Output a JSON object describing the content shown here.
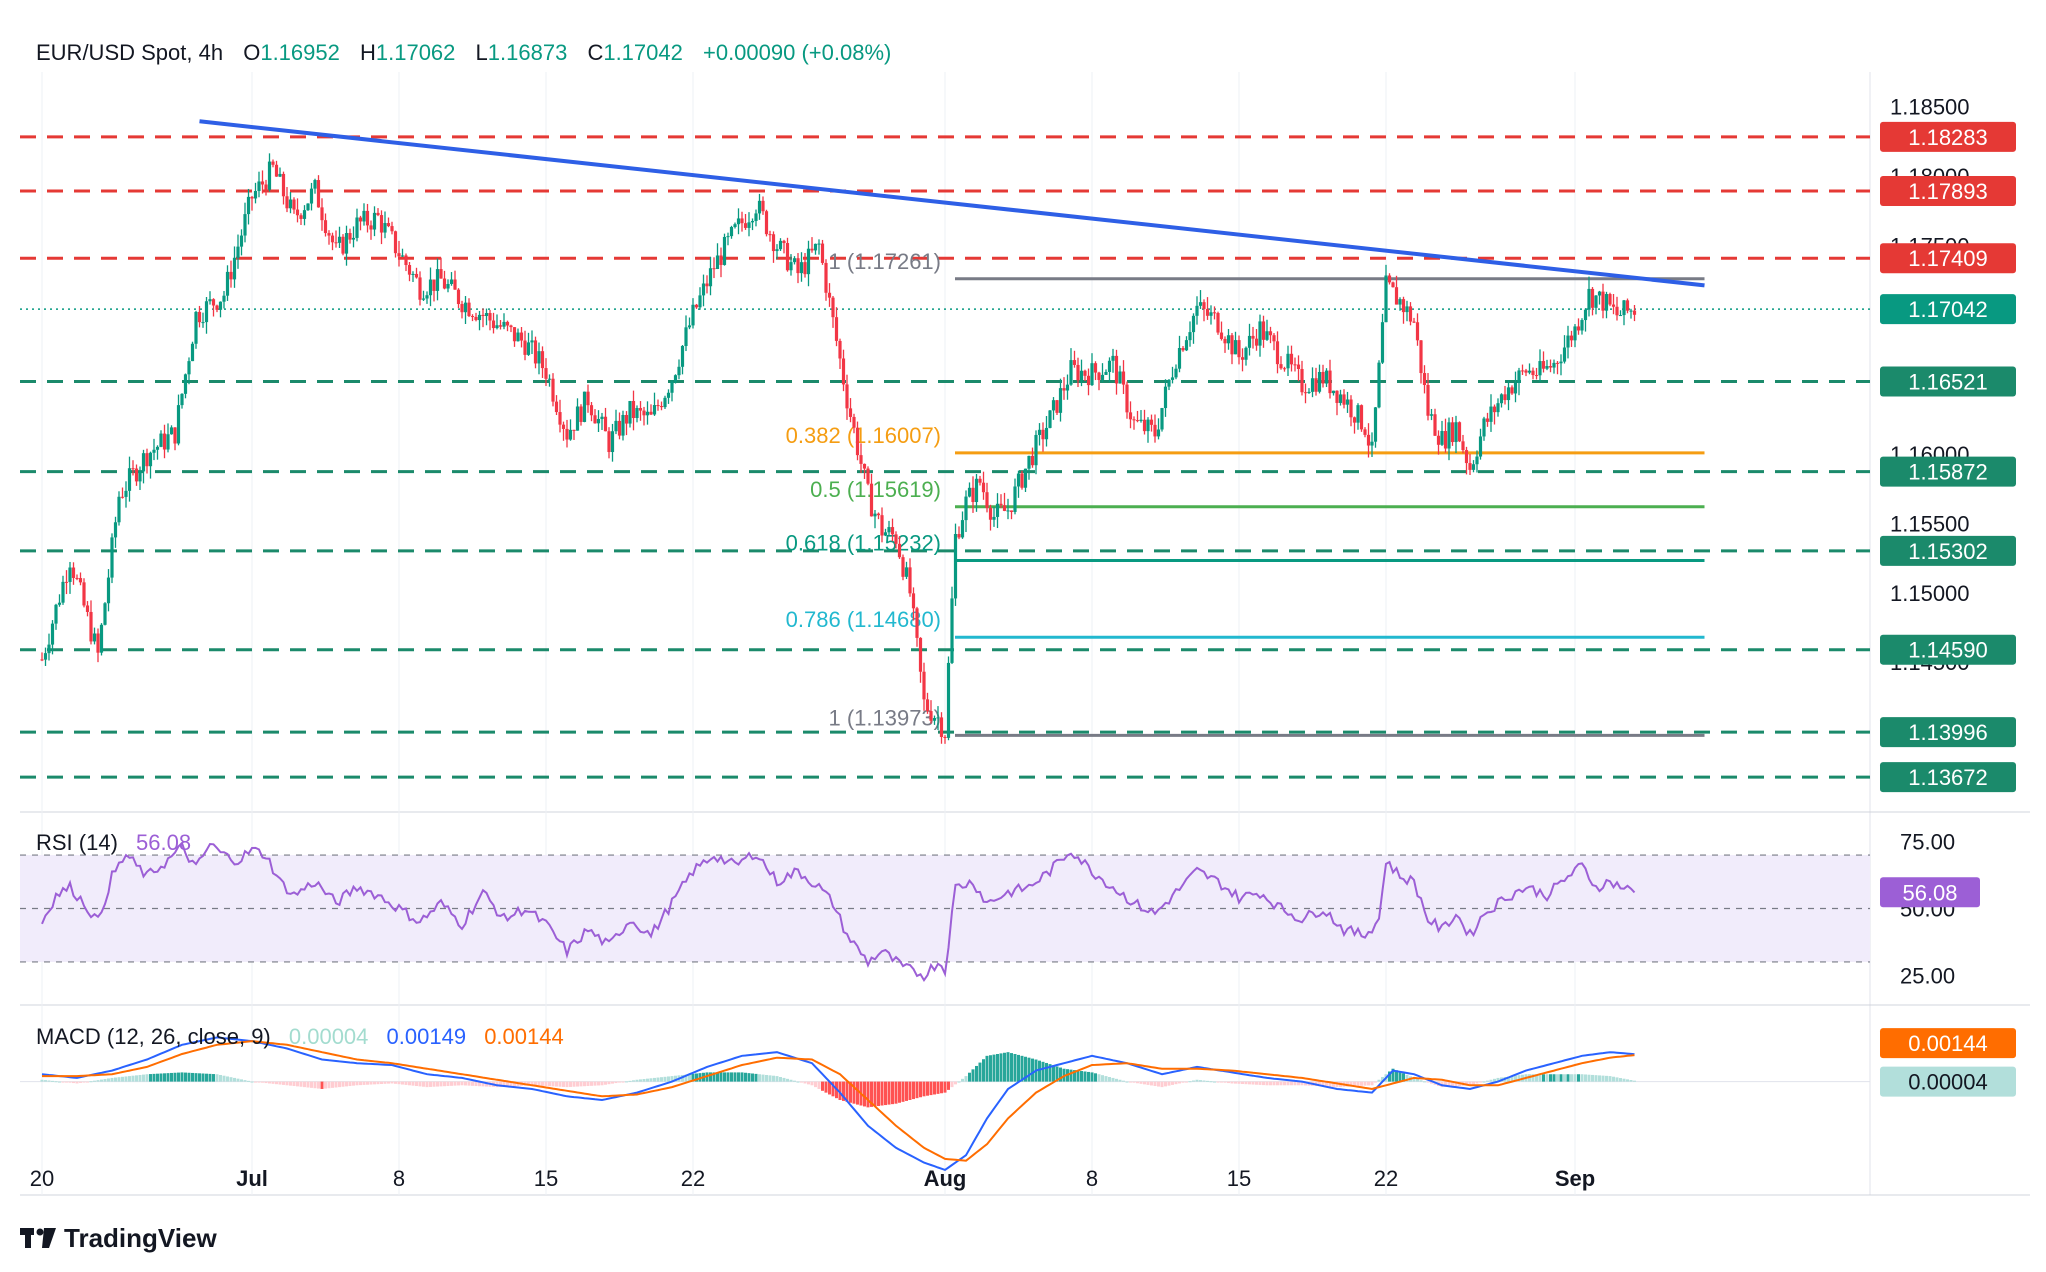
{
  "header": {
    "symbol": "EUR/USD Spot, 4h",
    "o_label": "O",
    "o_value": "1.16952",
    "h_label": "H",
    "h_value": "1.17062",
    "l_label": "L",
    "l_value": "1.16873",
    "c_label": "C",
    "c_value": "1.17042",
    "change": "+0.00090 (+0.08%)"
  },
  "colors": {
    "red_level": "#e53935",
    "green_level": "#1b8a6b",
    "trend": "#2e5fe6",
    "fib_gray": "#787b86",
    "fib_orange": "#f59d12",
    "fib_lightgreen": "#4caf50",
    "fib_teal": "#089981",
    "fib_cyan": "#22b8cf",
    "up": "#089981",
    "down": "#f23645",
    "rsi": "#9c5fd6",
    "macd": "#2962ff",
    "signal": "#ff6d00"
  },
  "chart_data": [
    {
      "type": "candlestick",
      "title": "EUR/USD Spot, 4h",
      "y_axis_ticks": [
        "1.18500",
        "1.18000",
        "1.17500",
        "1.16000",
        "1.15500",
        "1.15000",
        "1.14500"
      ],
      "ylim": [
        1.1345,
        1.1875
      ],
      "x_ticks": [
        {
          "label": "20",
          "bold": false,
          "idx": 0
        },
        {
          "label": "Jul",
          "bold": true,
          "idx": 60
        },
        {
          "label": "8",
          "bold": false,
          "idx": 102
        },
        {
          "label": "15",
          "bold": false,
          "idx": 144
        },
        {
          "label": "22",
          "bold": false,
          "idx": 186
        },
        {
          "label": "Aug",
          "bold": true,
          "idx": 258
        },
        {
          "label": "8",
          "bold": false,
          "idx": 300
        },
        {
          "label": "15",
          "bold": false,
          "idx": 342
        },
        {
          "label": "22",
          "bold": false,
          "idx": 384
        },
        {
          "label": "Sep",
          "bold": true,
          "idx": 438
        }
      ],
      "resistance_levels": [
        {
          "value": "1.18283",
          "price": 1.18283,
          "color": "#e53935"
        },
        {
          "value": "1.17893",
          "price": 1.17893,
          "color": "#e53935"
        },
        {
          "value": "1.17409",
          "price": 1.17409,
          "color": "#e53935"
        }
      ],
      "support_levels": [
        {
          "value": "1.16521",
          "price": 1.16521,
          "color": "#1b8a6b"
        },
        {
          "value": "1.15872",
          "price": 1.15872,
          "color": "#1b8a6b"
        },
        {
          "value": "1.15302",
          "price": 1.15302,
          "color": "#1b8a6b"
        },
        {
          "value": "1.14590",
          "price": 1.1459,
          "color": "#1b8a6b"
        },
        {
          "value": "1.13996",
          "price": 1.13996,
          "color": "#1b8a6b"
        },
        {
          "value": "1.13672",
          "price": 1.13672,
          "color": "#1b8a6b"
        }
      ],
      "last_price": {
        "value": "1.17042",
        "price": 1.17042
      },
      "trendline": {
        "from": {
          "idx": 45,
          "price": 1.18395
        },
        "to": {
          "idx": 455,
          "price": 1.17235
        }
      },
      "fibonacci": [
        {
          "label": "1 (1.17261)",
          "price": 1.17261,
          "color": "#787b86"
        },
        {
          "label": "0.382 (1.16007)",
          "price": 1.16007,
          "color": "#f59d12"
        },
        {
          "label": "0.5 (1.15619)",
          "price": 1.15619,
          "color": "#4caf50"
        },
        {
          "label": "0.618 (1.15232)",
          "price": 1.15232,
          "color": "#089981"
        },
        {
          "label": "0.786 (1.14680)",
          "price": 1.1468,
          "color": "#22b8cf"
        },
        {
          "label": "1 (1.13973)",
          "price": 1.13973,
          "color": "#787b86"
        }
      ],
      "fib_start_idx": 258,
      "fib_end_idx": 455,
      "price_path": [
        [
          0,
          1.1452
        ],
        [
          8,
          1.1525
        ],
        [
          16,
          1.1455
        ],
        [
          22,
          1.157
        ],
        [
          30,
          1.16
        ],
        [
          38,
          1.1615
        ],
        [
          44,
          1.17
        ],
        [
          52,
          1.1715
        ],
        [
          60,
          1.1785
        ],
        [
          66,
          1.1805
        ],
        [
          72,
          1.177
        ],
        [
          78,
          1.179
        ],
        [
          84,
          1.1745
        ],
        [
          90,
          1.1765
        ],
        [
          96,
          1.177
        ],
        [
          102,
          1.1745
        ],
        [
          108,
          1.172
        ],
        [
          114,
          1.1725
        ],
        [
          120,
          1.171
        ],
        [
          126,
          1.17
        ],
        [
          132,
          1.169
        ],
        [
          138,
          1.168
        ],
        [
          144,
          1.166
        ],
        [
          150,
          1.1615
        ],
        [
          156,
          1.164
        ],
        [
          162,
          1.1608
        ],
        [
          168,
          1.163
        ],
        [
          174,
          1.1625
        ],
        [
          180,
          1.1655
        ],
        [
          186,
          1.17
        ],
        [
          192,
          1.1735
        ],
        [
          198,
          1.176
        ],
        [
          204,
          1.178
        ],
        [
          210,
          1.175
        ],
        [
          216,
          1.173
        ],
        [
          222,
          1.175
        ],
        [
          226,
          1.1695
        ],
        [
          230,
          1.164
        ],
        [
          236,
          1.157
        ],
        [
          240,
          1.1545
        ],
        [
          244,
          1.154
        ],
        [
          248,
          1.15
        ],
        [
          252,
          1.142
        ],
        [
          256,
          1.141
        ],
        [
          258,
          1.14
        ],
        [
          261,
          1.154
        ],
        [
          264,
          1.1565
        ],
        [
          268,
          1.158
        ],
        [
          272,
          1.1555
        ],
        [
          276,
          1.156
        ],
        [
          282,
          1.1595
        ],
        [
          288,
          1.1625
        ],
        [
          294,
          1.166
        ],
        [
          300,
          1.1658
        ],
        [
          306,
          1.1665
        ],
        [
          312,
          1.1622
        ],
        [
          318,
          1.1615
        ],
        [
          324,
          1.167
        ],
        [
          330,
          1.1705
        ],
        [
          336,
          1.1695
        ],
        [
          342,
          1.167
        ],
        [
          348,
          1.169
        ],
        [
          354,
          1.167
        ],
        [
          360,
          1.165
        ],
        [
          366,
          1.1655
        ],
        [
          372,
          1.164
        ],
        [
          378,
          1.162
        ],
        [
          380,
          1.16
        ],
        [
          384,
          1.172
        ],
        [
          388,
          1.171
        ],
        [
          392,
          1.1695
        ],
        [
          396,
          1.163
        ],
        [
          400,
          1.161
        ],
        [
          404,
          1.162
        ],
        [
          408,
          1.159
        ],
        [
          412,
          1.162
        ],
        [
          418,
          1.1645
        ],
        [
          424,
          1.166
        ],
        [
          428,
          1.1658
        ],
        [
          432,
          1.1665
        ],
        [
          438,
          1.169
        ],
        [
          442,
          1.1715
        ],
        [
          446,
          1.171
        ],
        [
          450,
          1.17
        ],
        [
          455,
          1.17042
        ]
      ]
    },
    {
      "type": "line",
      "title": "RSI (14)",
      "value": "56.08",
      "ticks": [
        "75.00",
        "50.00",
        "25.00"
      ],
      "ylim": [
        15,
        85
      ],
      "band": [
        30,
        70
      ],
      "series": [
        [
          0,
          45
        ],
        [
          4,
          55
        ],
        [
          8,
          58
        ],
        [
          12,
          52
        ],
        [
          16,
          45
        ],
        [
          20,
          62
        ],
        [
          24,
          70
        ],
        [
          30,
          62
        ],
        [
          36,
          68
        ],
        [
          40,
          73
        ],
        [
          44,
          65
        ],
        [
          48,
          74
        ],
        [
          52,
          70
        ],
        [
          56,
          68
        ],
        [
          60,
          72
        ],
        [
          64,
          70
        ],
        [
          68,
          60
        ],
        [
          72,
          55
        ],
        [
          78,
          60
        ],
        [
          84,
          52
        ],
        [
          90,
          58
        ],
        [
          96,
          55
        ],
        [
          102,
          50
        ],
        [
          108,
          45
        ],
        [
          114,
          52
        ],
        [
          120,
          44
        ],
        [
          126,
          56
        ],
        [
          132,
          46
        ],
        [
          138,
          50
        ],
        [
          144,
          44
        ],
        [
          150,
          34
        ],
        [
          156,
          42
        ],
        [
          162,
          36
        ],
        [
          168,
          46
        ],
        [
          174,
          40
        ],
        [
          180,
          52
        ],
        [
          186,
          64
        ],
        [
          192,
          70
        ],
        [
          198,
          66
        ],
        [
          204,
          71
        ],
        [
          210,
          60
        ],
        [
          216,
          64
        ],
        [
          222,
          58
        ],
        [
          226,
          52
        ],
        [
          230,
          40
        ],
        [
          236,
          30
        ],
        [
          240,
          34
        ],
        [
          246,
          28
        ],
        [
          252,
          25
        ],
        [
          256,
          30
        ],
        [
          258,
          27
        ],
        [
          261,
          58
        ],
        [
          266,
          60
        ],
        [
          270,
          52
        ],
        [
          276,
          56
        ],
        [
          282,
          58
        ],
        [
          288,
          64
        ],
        [
          294,
          72
        ],
        [
          300,
          64
        ],
        [
          306,
          58
        ],
        [
          312,
          52
        ],
        [
          318,
          48
        ],
        [
          324,
          56
        ],
        [
          330,
          64
        ],
        [
          336,
          60
        ],
        [
          342,
          54
        ],
        [
          348,
          56
        ],
        [
          354,
          50
        ],
        [
          360,
          46
        ],
        [
          366,
          50
        ],
        [
          372,
          42
        ],
        [
          378,
          40
        ],
        [
          382,
          46
        ],
        [
          384,
          68
        ],
        [
          388,
          62
        ],
        [
          392,
          60
        ],
        [
          396,
          46
        ],
        [
          400,
          42
        ],
        [
          404,
          48
        ],
        [
          408,
          40
        ],
        [
          412,
          48
        ],
        [
          418,
          54
        ],
        [
          424,
          58
        ],
        [
          430,
          55
        ],
        [
          436,
          62
        ],
        [
          440,
          66
        ],
        [
          444,
          58
        ],
        [
          448,
          60
        ],
        [
          455,
          56.08
        ]
      ]
    },
    {
      "type": "macd",
      "title": "MACD (12, 26, close, 9)",
      "histogram_value": "0.00004",
      "macd_value": "0.00149",
      "signal_value": "0.00144",
      "ylim": [
        -0.006,
        0.004
      ],
      "macd": [
        [
          0,
          0.0004
        ],
        [
          10,
          0.0002
        ],
        [
          20,
          0.0006
        ],
        [
          30,
          0.0012
        ],
        [
          40,
          0.002
        ],
        [
          50,
          0.0024
        ],
        [
          60,
          0.0022
        ],
        [
          70,
          0.0018
        ],
        [
          80,
          0.0012
        ],
        [
          90,
          0.001
        ],
        [
          100,
          0.0009
        ],
        [
          110,
          0.0004
        ],
        [
          120,
          0.0002
        ],
        [
          130,
          -0.0002
        ],
        [
          140,
          -0.0004
        ],
        [
          150,
          -0.0008
        ],
        [
          160,
          -0.001
        ],
        [
          170,
          -0.0006
        ],
        [
          180,
          0.0
        ],
        [
          190,
          0.0008
        ],
        [
          200,
          0.0014
        ],
        [
          210,
          0.0016
        ],
        [
          220,
          0.001
        ],
        [
          228,
          -0.0006
        ],
        [
          236,
          -0.0024
        ],
        [
          244,
          -0.0036
        ],
        [
          252,
          -0.0044
        ],
        [
          258,
          -0.0048
        ],
        [
          264,
          -0.004
        ],
        [
          270,
          -0.002
        ],
        [
          276,
          -0.0004
        ],
        [
          284,
          0.0006
        ],
        [
          292,
          0.001
        ],
        [
          300,
          0.0014
        ],
        [
          310,
          0.001
        ],
        [
          320,
          0.0004
        ],
        [
          330,
          0.0008
        ],
        [
          340,
          0.0005
        ],
        [
          350,
          0.0002
        ],
        [
          360,
          0.0
        ],
        [
          370,
          -0.0004
        ],
        [
          380,
          -0.0006
        ],
        [
          386,
          0.0006
        ],
        [
          392,
          0.0004
        ],
        [
          400,
          -0.0002
        ],
        [
          408,
          -0.0004
        ],
        [
          416,
          0.0
        ],
        [
          424,
          0.0006
        ],
        [
          432,
          0.001
        ],
        [
          440,
          0.0014
        ],
        [
          448,
          0.0016
        ],
        [
          455,
          0.00149
        ]
      ],
      "signal": [
        [
          0,
          0.0003
        ],
        [
          10,
          0.0003
        ],
        [
          20,
          0.0004
        ],
        [
          30,
          0.0008
        ],
        [
          40,
          0.0015
        ],
        [
          50,
          0.002
        ],
        [
          60,
          0.0022
        ],
        [
          70,
          0.002
        ],
        [
          80,
          0.0016
        ],
        [
          90,
          0.0012
        ],
        [
          100,
          0.001
        ],
        [
          110,
          0.0007
        ],
        [
          120,
          0.0004
        ],
        [
          130,
          0.0001
        ],
        [
          140,
          -0.0002
        ],
        [
          150,
          -0.0005
        ],
        [
          160,
          -0.0008
        ],
        [
          170,
          -0.0007
        ],
        [
          180,
          -0.0003
        ],
        [
          190,
          0.0003
        ],
        [
          200,
          0.0009
        ],
        [
          210,
          0.0013
        ],
        [
          220,
          0.0012
        ],
        [
          228,
          0.0004
        ],
        [
          236,
          -0.001
        ],
        [
          244,
          -0.0024
        ],
        [
          252,
          -0.0036
        ],
        [
          258,
          -0.0042
        ],
        [
          264,
          -0.0043
        ],
        [
          270,
          -0.0034
        ],
        [
          276,
          -0.002
        ],
        [
          284,
          -0.0006
        ],
        [
          292,
          0.0003
        ],
        [
          300,
          0.0009
        ],
        [
          310,
          0.001
        ],
        [
          320,
          0.0007
        ],
        [
          330,
          0.0007
        ],
        [
          340,
          0.0006
        ],
        [
          350,
          0.0004
        ],
        [
          360,
          0.0002
        ],
        [
          370,
          -0.0001
        ],
        [
          380,
          -0.0004
        ],
        [
          386,
          -0.0001
        ],
        [
          392,
          0.0002
        ],
        [
          400,
          0.0001
        ],
        [
          408,
          -0.0002
        ],
        [
          416,
          -0.0002
        ],
        [
          424,
          0.0002
        ],
        [
          432,
          0.0006
        ],
        [
          440,
          0.001
        ],
        [
          448,
          0.0013
        ],
        [
          455,
          0.00144
        ]
      ]
    }
  ],
  "footer": {
    "brand": "TradingView"
  }
}
